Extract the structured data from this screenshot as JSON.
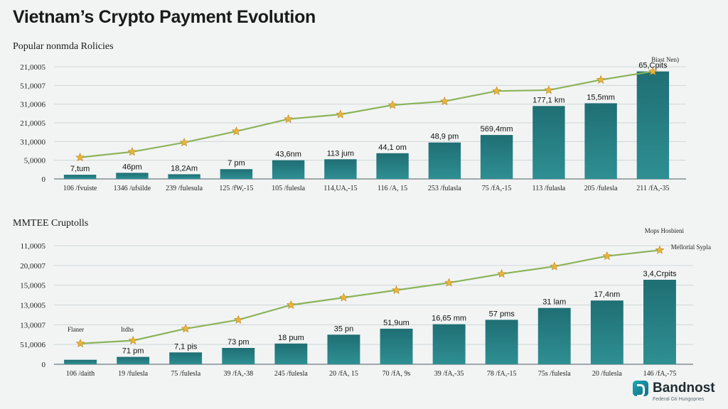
{
  "title": "Vietnam’s Crypto Payment  Evolution",
  "brand": {
    "name": "Bandnost",
    "tagline": "Federal Gti Hungopnes",
    "color": "#1391a1"
  },
  "colors": {
    "bar": "#2e8f92",
    "bar_dark": "#1f6f74",
    "line": "#8bb35a",
    "marker": "#e8b53a",
    "grid": "#cfd6d8"
  },
  "chart_data": [
    {
      "type": "bar",
      "title": "Popular nonmda Rolicies",
      "y_tick_labels": [
        "0",
        "5,0000",
        "31,0000",
        "21,0005",
        "31,0006",
        "51,0007",
        "21,0005"
      ],
      "categories": [
        "106 /fvuiste",
        "1346 /ufsilde",
        "239 /fulesula",
        "125 /fW,-15",
        "105 /fulesla",
        "114,UA,-15",
        "116 /A, 15",
        "253 /fulasla",
        "75 /fA,-15",
        "113 /fulasla",
        "205 /fulesla",
        "211 /fA,-35"
      ],
      "bar_labels": [
        "7,tum",
        "46pm",
        "18,2Am",
        "7 pm",
        "43,6nm",
        "113 jum",
        "44,1 om",
        "48,9 pm",
        "569,4mm",
        "177,1 km",
        "15,5mm",
        "65,Cpits"
      ],
      "bar_values": [
        0.45,
        0.65,
        0.5,
        1.05,
        2.0,
        2.1,
        2.75,
        3.9,
        4.7,
        7.8,
        8.1,
        11.5
      ],
      "line_values": [
        2.3,
        2.9,
        3.9,
        5.1,
        6.4,
        6.9,
        7.9,
        8.3,
        9.4,
        9.5,
        10.6,
        11.5
      ],
      "ylim": [
        0,
        12
      ],
      "annotations": [
        "Biast Nen)"
      ]
    },
    {
      "type": "bar",
      "title": "MMTEE Cruptolls",
      "y_tick_labels": [
        "0",
        "51,0006",
        "13,0007",
        "13,0005",
        "15,0005",
        "20,0007",
        "11,0005"
      ],
      "categories": [
        "106 /daith",
        "19 /fulesla",
        "75 /fulesla",
        "39 /fA,-38",
        "245 /fulesla",
        "20 /fA, 15",
        "70 /fA, 9s",
        "39 /fA,-35",
        "78 /fA,-15",
        "75s /fulesla",
        "20 /fulesla",
        "146 /fA,-75"
      ],
      "bar_labels": [
        "",
        "71 pm",
        "7,1 pis",
        "73 pm",
        "18 pum",
        "35 pn",
        "51,9um",
        "16,65 mm",
        "57 pms",
        "31 lam",
        "17,4nm",
        "3,4,Crpits"
      ],
      "bar_values": [
        0.3,
        0.5,
        0.8,
        1.1,
        1.4,
        2.0,
        2.4,
        2.7,
        3.0,
        3.8,
        4.3,
        5.7
      ],
      "line_values": [
        1.4,
        1.6,
        2.4,
        3.0,
        4.0,
        4.5,
        5.0,
        5.5,
        6.1,
        6.6,
        7.3,
        7.7
      ],
      "ylim": [
        0,
        8
      ],
      "annotations": [
        "Flaner",
        "Itdhs",
        "Mops Hosbieni",
        "Mellorial Sypla"
      ]
    }
  ]
}
